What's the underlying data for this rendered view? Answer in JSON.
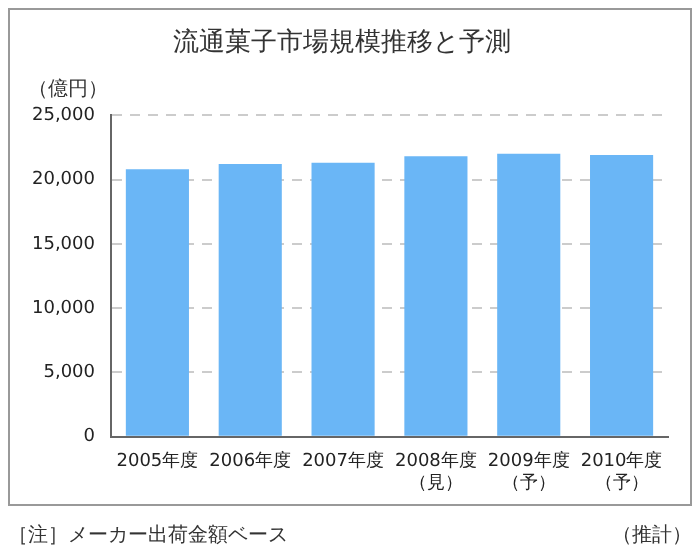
{
  "chart_data": {
    "type": "bar",
    "title": "流通菓子市場規模推移と予測",
    "ylabel": "（億円）",
    "categories": [
      "2005年度",
      "2006年度",
      "2007年度",
      "2008年度（見）",
      "2009年度（予）",
      "2010年度（予）"
    ],
    "values": [
      20800,
      21200,
      21300,
      21800,
      22000,
      21900
    ],
    "color": "#6ab6f6",
    "ylim": [
      0,
      25000
    ],
    "yticks": [
      {
        "value": 0,
        "label": "0"
      },
      {
        "value": 5000,
        "label": "5,000"
      },
      {
        "value": 10000,
        "label": "10,000"
      },
      {
        "value": 15000,
        "label": "15,000"
      },
      {
        "value": 20000,
        "label": "20,000"
      },
      {
        "value": 25000,
        "label": "25,000"
      }
    ],
    "grid": "y",
    "legend": false,
    "annotations": [
      "［注］メーカー出荷金額ベース",
      "（推計）"
    ]
  }
}
